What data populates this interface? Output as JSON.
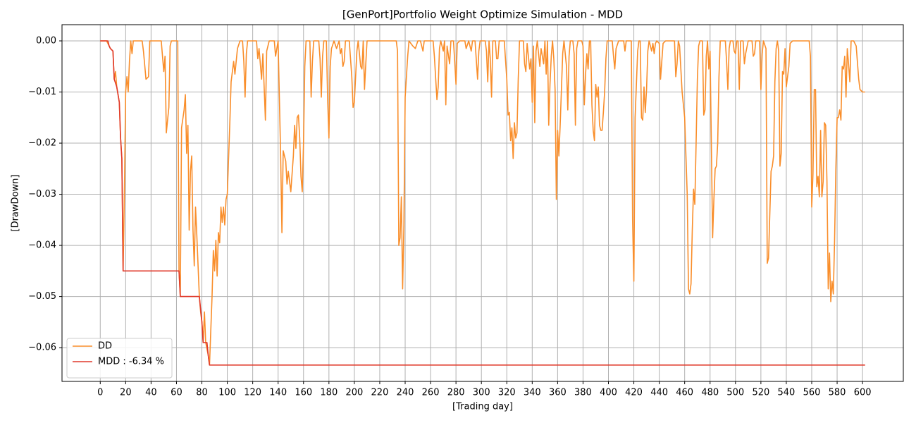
{
  "chart_data": {
    "type": "line",
    "title": "[GenPort]Portfolio Weight Optimize Simulation - MDD",
    "xlabel": "[Trading day]",
    "ylabel": "[DrawDown]",
    "xlim": [
      -30.1,
      632.1
    ],
    "ylim": [
      -0.0666,
      0.00317
    ],
    "xticks": [
      0,
      20,
      40,
      60,
      80,
      100,
      120,
      140,
      160,
      180,
      200,
      220,
      240,
      260,
      280,
      300,
      320,
      340,
      360,
      380,
      400,
      420,
      440,
      460,
      480,
      500,
      520,
      540,
      560,
      580,
      600
    ],
    "yticks": [
      {
        "value": -0.06,
        "label": "−0.06"
      },
      {
        "value": -0.05,
        "label": "−0.05"
      },
      {
        "value": -0.04,
        "label": "−0.04"
      },
      {
        "value": -0.03,
        "label": "−0.03"
      },
      {
        "value": -0.02,
        "label": "−0.02"
      },
      {
        "value": -0.01,
        "label": "−0.01"
      },
      {
        "value": 0,
        "label": "0.00"
      }
    ],
    "grid": true,
    "legend": "lower left",
    "series": [
      {
        "name": "DD",
        "color": "#f98e2b",
        "x": [
          0,
          5,
          7,
          8,
          10,
          11,
          12,
          13,
          15,
          16,
          17,
          18,
          19,
          20,
          21,
          22,
          23,
          24,
          25,
          26,
          33,
          34,
          36,
          38,
          39,
          48,
          50,
          51,
          52,
          54,
          55,
          56,
          61,
          62,
          63,
          64,
          66,
          67,
          68,
          69,
          70,
          71,
          72,
          73,
          74,
          75,
          76,
          78,
          79,
          80,
          81,
          82,
          83,
          85,
          86,
          88,
          89,
          90,
          91,
          92,
          93,
          94,
          95,
          96,
          97,
          98,
          99,
          100,
          102,
          103,
          105,
          106,
          108,
          110,
          112,
          113,
          114,
          115,
          116,
          123,
          124,
          125,
          127,
          128,
          130,
          131,
          133,
          137,
          138,
          139,
          140,
          142,
          143,
          144,
          146,
          147,
          148,
          150,
          152,
          153,
          154,
          155,
          156,
          157,
          158,
          159,
          160,
          161,
          162,
          165,
          166,
          167,
          168,
          172,
          173,
          174,
          175,
          176,
          178,
          179,
          180,
          181,
          182,
          184,
          186,
          188,
          189,
          190,
          191,
          192,
          193,
          196,
          198,
          199,
          200,
          202,
          203,
          205,
          206,
          207,
          208,
          209,
          210,
          233,
          234,
          235,
          236,
          237,
          238,
          239,
          240,
          242,
          243,
          246,
          248,
          250,
          252,
          254,
          255,
          262,
          263,
          265,
          266,
          267,
          268,
          270,
          271,
          272,
          273,
          275,
          276,
          278,
          279,
          280,
          281,
          283,
          287,
          288,
          290,
          292,
          293,
          295,
          297,
          298,
          299,
          303,
          304,
          305,
          306,
          307,
          308,
          309,
          311,
          312,
          313,
          314,
          318,
          320,
          321,
          322,
          323,
          324,
          325,
          326,
          327,
          328,
          329,
          330,
          333,
          334,
          335,
          336,
          337,
          338,
          339,
          340,
          341,
          342,
          343,
          344,
          346,
          347,
          349,
          350,
          351,
          352,
          353,
          354,
          355,
          356,
          357,
          358,
          359,
          360,
          361,
          362,
          363,
          364,
          365,
          367,
          368,
          369,
          370,
          372,
          373,
          374,
          375,
          376,
          379,
          380,
          381,
          382,
          383,
          384,
          385,
          386,
          387,
          388,
          389,
          390,
          391,
          392,
          393,
          394,
          395,
          396,
          397,
          398,
          399,
          403,
          404,
          405,
          406,
          408,
          412,
          413,
          414,
          418,
          419,
          420,
          421,
          423,
          424,
          425,
          426,
          427,
          428,
          429,
          430,
          431,
          432,
          434,
          435,
          436,
          437,
          438,
          440,
          441,
          442,
          443,
          445,
          452,
          453,
          454,
          455,
          456,
          458,
          460,
          462,
          463,
          464,
          465,
          466,
          467,
          468,
          469,
          470,
          471,
          472,
          474,
          475,
          476,
          477,
          478,
          479,
          480,
          481,
          482,
          483,
          484,
          485,
          486,
          487,
          488,
          492,
          493,
          494,
          495,
          496,
          498,
          499,
          500,
          501,
          502,
          503,
          504,
          506,
          507,
          508,
          510,
          513,
          514,
          515,
          516,
          519,
          520,
          521,
          522,
          524,
          525,
          526,
          527,
          528,
          529,
          530,
          531,
          532,
          533,
          534,
          535,
          536,
          537,
          538,
          539,
          540,
          542,
          543,
          545,
          558,
          559,
          560,
          561,
          562,
          563,
          564,
          565,
          566,
          567,
          568,
          569,
          570,
          571,
          572,
          573,
          574,
          575,
          576,
          577,
          578,
          579,
          580,
          581,
          582,
          583,
          584,
          585,
          586,
          587,
          588,
          589,
          590,
          591,
          593,
          595,
          597,
          598,
          600,
          602
        ],
        "values": [
          0,
          0,
          -0.001,
          -0.0015,
          -0.002,
          -0.0075,
          -0.006,
          -0.009,
          -0.012,
          -0.019,
          -0.023,
          -0.045,
          -0.03,
          -0.01,
          -0.007,
          -0.01,
          -0.004,
          0,
          -0.0025,
          0,
          0,
          -0.002,
          -0.0075,
          -0.007,
          0,
          0,
          -0.006,
          -0.003,
          -0.018,
          -0.013,
          -0.001,
          0,
          0,
          -0.045,
          -0.05,
          -0.017,
          -0.0135,
          -0.0105,
          -0.022,
          -0.0165,
          -0.037,
          -0.0255,
          -0.0225,
          -0.037,
          -0.044,
          -0.0325,
          -0.038,
          -0.05,
          -0.053,
          -0.055,
          -0.059,
          -0.053,
          -0.059,
          -0.0615,
          -0.0634,
          -0.05,
          -0.041,
          -0.045,
          -0.039,
          -0.046,
          -0.0375,
          -0.0395,
          -0.0325,
          -0.0355,
          -0.0325,
          -0.036,
          -0.031,
          -0.03,
          -0.016,
          -0.008,
          -0.004,
          -0.0065,
          -0.0015,
          0,
          0,
          -0.004,
          -0.011,
          -0.0025,
          0,
          0,
          -0.0035,
          -0.0015,
          -0.0075,
          -0.0025,
          -0.0155,
          -0.002,
          0,
          0,
          -0.003,
          -0.0015,
          0,
          -0.0225,
          -0.0375,
          -0.0215,
          -0.0235,
          -0.028,
          -0.0255,
          -0.0295,
          -0.0225,
          -0.0165,
          -0.021,
          -0.015,
          -0.0145,
          -0.019,
          -0.0265,
          -0.0295,
          -0.02,
          -0.005,
          0,
          0,
          -0.011,
          -0.004,
          0,
          0,
          -0.0035,
          -0.011,
          -0.003,
          0,
          0,
          -0.0115,
          -0.019,
          -0.005,
          -0.0015,
          0,
          -0.0015,
          0,
          -0.0025,
          -0.0015,
          -0.005,
          -0.004,
          0,
          0,
          -0.007,
          -0.013,
          -0.012,
          -0.002,
          0,
          -0.005,
          -0.0055,
          0,
          -0.0095,
          -0.0045,
          0,
          0,
          -0.002,
          -0.04,
          -0.0385,
          -0.0305,
          -0.0485,
          -0.036,
          -0.011,
          -0.003,
          0,
          -0.001,
          -0.0015,
          0,
          0,
          -0.002,
          0,
          0,
          -0.003,
          -0.0115,
          -0.009,
          -0.0015,
          0,
          -0.002,
          0,
          -0.0125,
          -0.001,
          -0.0045,
          0,
          0,
          -0.004,
          -0.0085,
          -0.0005,
          0,
          0,
          -0.0015,
          0,
          -0.002,
          0,
          0,
          -0.0075,
          -0.002,
          0,
          0,
          -0.002,
          -0.008,
          0,
          -0.0035,
          -0.011,
          0,
          0,
          -0.0035,
          -0.0035,
          0,
          0,
          -0.0075,
          -0.0145,
          -0.014,
          -0.0195,
          -0.017,
          -0.023,
          -0.016,
          -0.019,
          -0.018,
          -0.0075,
          0,
          0,
          -0.0045,
          -0.006,
          -0.0005,
          -0.003,
          -0.0055,
          -0.0035,
          -0.012,
          -0.001,
          -0.016,
          -0.002,
          0,
          -0.005,
          -0.0015,
          -0.0045,
          0,
          -0.0065,
          0,
          -0.0165,
          -0.0085,
          -0.003,
          0,
          -0.0035,
          -0.0095,
          -0.031,
          -0.0175,
          -0.0225,
          -0.0165,
          -0.0095,
          -0.0025,
          0,
          -0.005,
          -0.0135,
          -0.003,
          0,
          0,
          -0.0025,
          -0.0165,
          -0.0015,
          0,
          0,
          -0.001,
          -0.0125,
          -0.0065,
          -0.0025,
          -0.0055,
          0,
          0,
          -0.0125,
          -0.0175,
          -0.0195,
          -0.0085,
          -0.011,
          -0.009,
          -0.0165,
          -0.0175,
          -0.0175,
          -0.014,
          -0.01,
          -0.0035,
          0,
          0,
          -0.003,
          -0.0055,
          -0.0015,
          0,
          0,
          -0.002,
          0,
          0,
          -0.035,
          -0.047,
          -0.015,
          -0.002,
          0,
          0,
          -0.015,
          -0.0155,
          -0.009,
          -0.014,
          -0.0095,
          -0.002,
          0,
          -0.002,
          -0.0005,
          -0.0025,
          -0.0005,
          0,
          -0.0005,
          -0.0075,
          -0.004,
          -0.0005,
          0,
          0,
          -0.007,
          -0.0045,
          0,
          -0.001,
          -0.01,
          -0.015,
          -0.03,
          -0.0485,
          -0.0495,
          -0.0475,
          -0.037,
          -0.029,
          -0.032,
          -0.02,
          -0.0075,
          -0.001,
          0,
          0,
          -0.0145,
          -0.0135,
          -0.003,
          0,
          -0.0055,
          -0.002,
          -0.02,
          -0.0385,
          -0.031,
          -0.025,
          -0.0245,
          -0.02,
          -0.007,
          0,
          0,
          -0.004,
          -0.0095,
          -0.0015,
          0,
          0,
          -0.002,
          -0.0025,
          0,
          0,
          -0.0095,
          0,
          0,
          -0.0045,
          -0.0025,
          0,
          0,
          -0.003,
          -0.0025,
          0,
          0,
          -0.0095,
          -0.0025,
          0,
          -0.0015,
          -0.0435,
          -0.0425,
          -0.034,
          -0.0255,
          -0.0245,
          -0.0225,
          -0.008,
          -0.0015,
          0,
          -0.002,
          -0.0245,
          -0.022,
          -0.006,
          -0.0065,
          -0.0015,
          -0.009,
          -0.005,
          -0.0005,
          0,
          0,
          -0.003,
          -0.0325,
          -0.026,
          -0.0095,
          -0.0095,
          -0.0285,
          -0.0265,
          -0.0305,
          -0.0175,
          -0.0305,
          -0.0275,
          -0.016,
          -0.0165,
          -0.0275,
          -0.0485,
          -0.0415,
          -0.051,
          -0.047,
          -0.0495,
          -0.039,
          -0.025,
          -0.015,
          -0.015,
          -0.0135,
          -0.0155,
          -0.005,
          -0.0055,
          -0.003,
          -0.011,
          -0.0015,
          -0.0045,
          -0.008,
          0,
          0,
          -0.001,
          -0.0075,
          -0.0095,
          -0.01,
          -0.01
        ]
      },
      {
        "name": "MDD : -6.34 %",
        "color": "#e0392b",
        "x": [
          0,
          6,
          7,
          8,
          10,
          11,
          13,
          15,
          16,
          17,
          18,
          62,
          63,
          78,
          80,
          81,
          84,
          85,
          86,
          602
        ],
        "values": [
          0,
          0,
          -0.001,
          -0.0015,
          -0.002,
          -0.0075,
          -0.009,
          -0.012,
          -0.019,
          -0.023,
          -0.045,
          -0.045,
          -0.05,
          -0.05,
          -0.055,
          -0.059,
          -0.059,
          -0.0615,
          -0.0634,
          -0.0634
        ]
      }
    ]
  }
}
